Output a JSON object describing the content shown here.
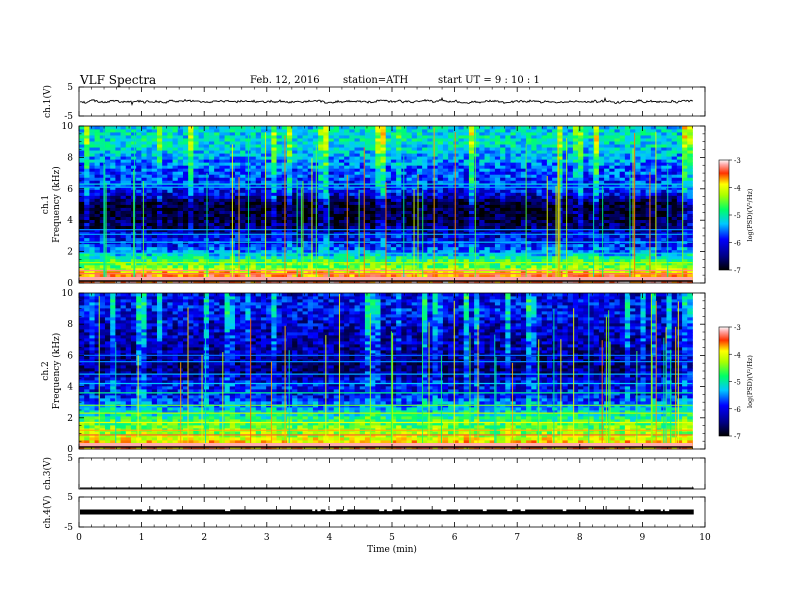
{
  "header": {
    "title": "VLF  Spectra",
    "date": "Feb. 12, 2016",
    "station": "station=ATH",
    "start_ut": "start  UT  =   9  : 10 : 1"
  },
  "colors": {
    "low": "#000066",
    "mid": "#00ccff",
    "high": "#ff0000"
  },
  "chart_data": [
    {
      "type": "line",
      "name": "ch1-waveform",
      "ylabel": "ch.1(V)",
      "ylim": [
        -5,
        5
      ],
      "yticks": [
        "5",
        "-5"
      ],
      "xlim": [
        0,
        10
      ],
      "baseline": 0,
      "amplitude": 0.6
    },
    {
      "type": "heatmap",
      "name": "ch1-spectrogram",
      "ylabel": "Frequency  (kHz)",
      "channel_label": "ch.1",
      "ylim": [
        0,
        10
      ],
      "yticks": [
        "0",
        "2",
        "4",
        "6",
        "8",
        "10"
      ],
      "xlim": [
        0,
        9.8
      ],
      "colorbar": {
        "label": "log(PSD)(V²/Hz)",
        "range": [
          -7,
          -3
        ],
        "ticks": [
          "-3",
          "-4",
          "-5",
          "-6",
          "-7"
        ]
      },
      "profile": [
        [
          0.0,
          -3.4
        ],
        [
          0.5,
          -3.6
        ],
        [
          1.0,
          -4.6
        ],
        [
          1.5,
          -4.9
        ],
        [
          2.0,
          -5.6
        ],
        [
          2.5,
          -6.0
        ],
        [
          3.0,
          -6.1
        ],
        [
          3.5,
          -6.5
        ],
        [
          4.0,
          -6.7
        ],
        [
          5.0,
          -6.8
        ],
        [
          5.8,
          -6.0
        ],
        [
          6.2,
          -5.9
        ],
        [
          7.0,
          -5.8
        ],
        [
          8.0,
          -5.5
        ],
        [
          9.0,
          -5.2
        ],
        [
          10.0,
          -5.3
        ]
      ],
      "lines": [
        {
          "f": 0.2,
          "v": -3.0
        },
        {
          "f": 0.6,
          "v": -3.3
        },
        {
          "f": 0.8,
          "v": -3.2
        },
        {
          "f": 1.3,
          "v": -4.4
        },
        {
          "f": 1.9,
          "v": -5.3
        },
        {
          "f": 2.6,
          "v": -5.4
        },
        {
          "f": 3.1,
          "v": -5.5
        },
        {
          "f": 3.4,
          "v": -5.6
        },
        {
          "f": 6.1,
          "v": -5.5
        },
        {
          "f": 6.3,
          "v": -5.3
        }
      ]
    },
    {
      "type": "heatmap",
      "name": "ch2-spectrogram",
      "ylabel": "Frequency  (kHz)",
      "channel_label": "ch.2",
      "ylim": [
        0,
        10
      ],
      "yticks": [
        "0",
        "2",
        "4",
        "6",
        "8",
        "10"
      ],
      "xlim": [
        0,
        9.8
      ],
      "colorbar": {
        "label": "log(PSD)(V²/Hz)",
        "range": [
          -7,
          -3
        ],
        "ticks": [
          "-3",
          "-4",
          "-5",
          "-6",
          "-7"
        ]
      },
      "profile": [
        [
          0.0,
          -3.6
        ],
        [
          0.5,
          -4.0
        ],
        [
          1.0,
          -4.4
        ],
        [
          1.5,
          -4.7
        ],
        [
          2.0,
          -5.0
        ],
        [
          2.5,
          -5.4
        ],
        [
          3.0,
          -5.7
        ],
        [
          3.5,
          -6.1
        ],
        [
          4.0,
          -6.0
        ],
        [
          4.5,
          -6.2
        ],
        [
          5.0,
          -6.5
        ],
        [
          6.0,
          -6.4
        ],
        [
          7.0,
          -6.3
        ],
        [
          8.0,
          -6.2
        ],
        [
          9.0,
          -6.0
        ],
        [
          10.0,
          -6.1
        ]
      ],
      "lines": [
        {
          "f": 0.3,
          "v": -3.2
        },
        {
          "f": 0.9,
          "v": -3.4
        },
        {
          "f": 1.2,
          "v": -3.8
        },
        {
          "f": 1.7,
          "v": -4.1
        },
        {
          "f": 2.3,
          "v": -4.4
        },
        {
          "f": 2.8,
          "v": -4.6
        },
        {
          "f": 3.6,
          "v": -5.0
        },
        {
          "f": 4.2,
          "v": -5.4
        },
        {
          "f": 4.8,
          "v": -5.5
        },
        {
          "f": 5.6,
          "v": -5.6
        },
        {
          "f": 6.0,
          "v": -5.7
        }
      ]
    },
    {
      "type": "line",
      "name": "ch3-waveform",
      "ylabel": "ch.3(V)",
      "ylim": [
        -5,
        5
      ],
      "yticks": [
        "5"
      ],
      "xlim": [
        0,
        10
      ],
      "baseline": -5,
      "amplitude": 0
    },
    {
      "type": "line",
      "name": "ch4-waveform",
      "ylabel": "ch.4(V)",
      "ylim": [
        -5,
        5
      ],
      "yticks": [
        "5",
        "-5"
      ],
      "xlim": [
        0,
        10
      ],
      "baseline": 0,
      "amplitude": 0.3
    }
  ],
  "x_axis": {
    "label": "Time  (min)",
    "ticks": [
      "0",
      "1",
      "2",
      "3",
      "4",
      "5",
      "6",
      "7",
      "8",
      "9",
      "10"
    ],
    "range": [
      0,
      10
    ]
  }
}
